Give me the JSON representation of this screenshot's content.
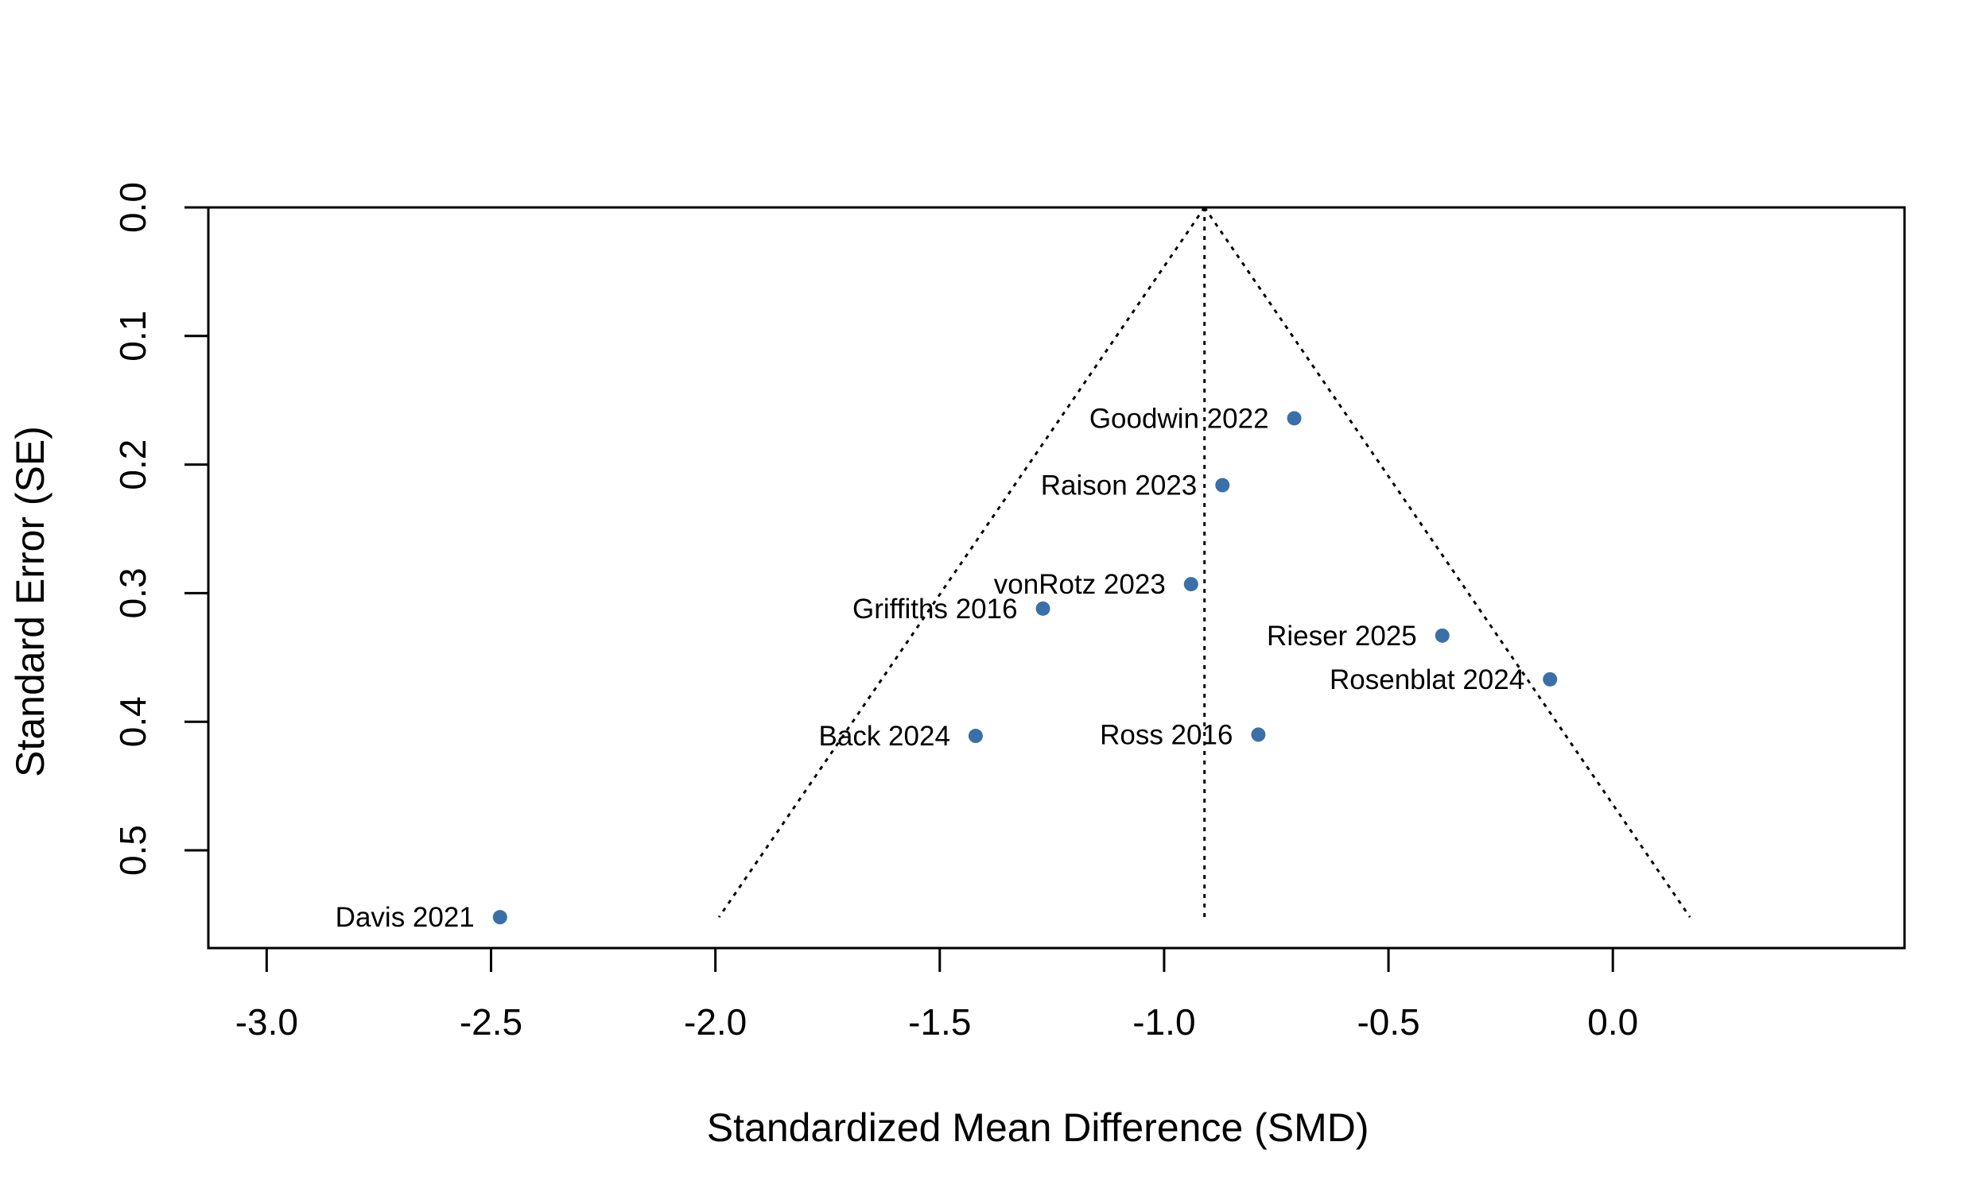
{
  "chart_data": {
    "type": "scatter",
    "title": "",
    "xlabel": "Standardized Mean Difference (SMD)",
    "ylabel": "Standard Error (SE)",
    "xlim": [
      -3.13,
      0.65
    ],
    "ylim": [
      0.0,
      0.576
    ],
    "y_reversed": true,
    "x_ticks": [
      -3.0,
      -2.5,
      -2.0,
      -1.5,
      -1.0,
      -0.5,
      0.0
    ],
    "x_tick_labels": [
      "-3.0",
      "-2.5",
      "-2.0",
      "-1.5",
      "-1.0",
      "-0.5",
      "0.0"
    ],
    "y_ticks": [
      0.0,
      0.1,
      0.2,
      0.3,
      0.4,
      0.5
    ],
    "y_tick_labels": [
      "0.0",
      "0.1",
      "0.2",
      "0.3",
      "0.4",
      "0.5"
    ],
    "pooled_estimate": -0.91,
    "funnel_max_se": 0.552,
    "funnel_z": 1.96,
    "grid": false,
    "point_color": "#3A70A7",
    "points": [
      {
        "study": "Goodwin 2022",
        "x": -0.71,
        "y": 0.164
      },
      {
        "study": "Raison 2023",
        "x": -0.87,
        "y": 0.216
      },
      {
        "study": "vonRotz 2023",
        "x": -0.94,
        "y": 0.293
      },
      {
        "study": "Griffiths 2016",
        "x": -1.27,
        "y": 0.312
      },
      {
        "study": "Rieser 2025",
        "x": -0.38,
        "y": 0.333
      },
      {
        "study": "Rosenblat 2024",
        "x": -0.14,
        "y": 0.367
      },
      {
        "study": "Back 2024",
        "x": -1.42,
        "y": 0.411
      },
      {
        "study": "Ross 2016",
        "x": -0.79,
        "y": 0.41
      },
      {
        "study": "Davis 2021",
        "x": -2.48,
        "y": 0.552
      }
    ]
  }
}
